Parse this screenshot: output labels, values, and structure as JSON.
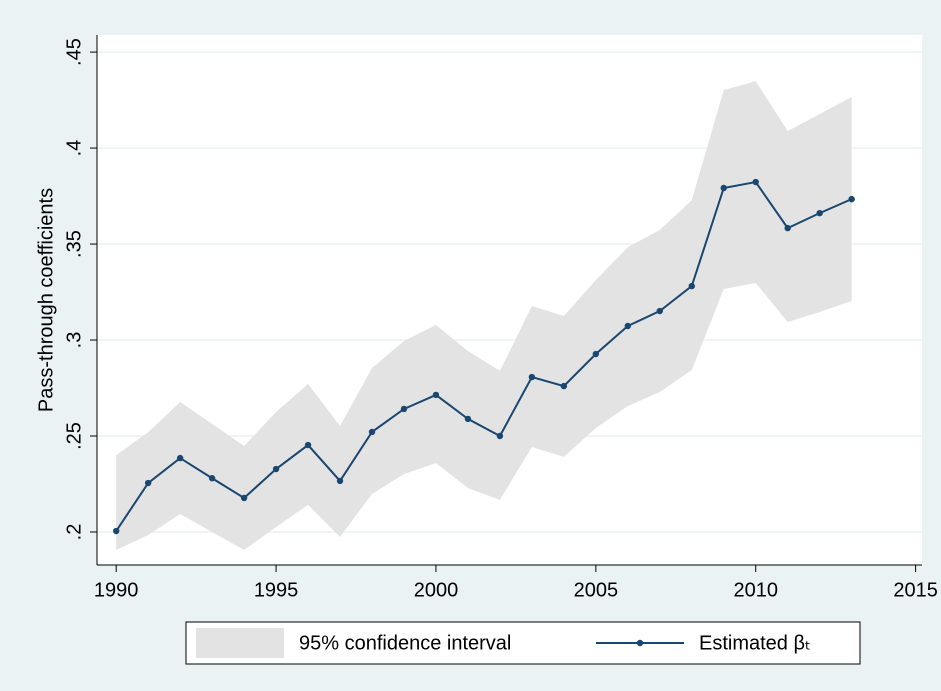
{
  "chart_data": {
    "type": "line",
    "ylabel": "Pass-through coefficients",
    "x": [
      1990,
      1991,
      1992,
      1993,
      1994,
      1995,
      1996,
      1997,
      1998,
      1999,
      2000,
      2001,
      2002,
      2003,
      2004,
      2005,
      2006,
      2007,
      2008,
      2009,
      2010,
      2011,
      2012,
      2013
    ],
    "series": [
      {
        "name": "Estimated βₜ",
        "color": "#1a476f",
        "values": [
          0.2005,
          0.2255,
          0.2385,
          0.228,
          0.2177,
          0.2328,
          0.2453,
          0.2266,
          0.2521,
          0.2641,
          0.2714,
          0.2589,
          0.25,
          0.2807,
          0.276,
          0.2927,
          0.3073,
          0.3151,
          0.3281,
          0.3792,
          0.3823,
          0.3583,
          0.3661,
          0.3734
        ]
      }
    ],
    "band": {
      "name": "95% confidence interval",
      "color": "#e3e3e3",
      "lower": [
        0.1906,
        0.1984,
        0.2094,
        0.2,
        0.1906,
        0.2026,
        0.2141,
        0.1974,
        0.2198,
        0.2302,
        0.2359,
        0.2229,
        0.2167,
        0.2443,
        0.2391,
        0.2542,
        0.2656,
        0.2729,
        0.2844,
        0.3266,
        0.3297,
        0.3094,
        0.3146,
        0.3203
      ],
      "upper": [
        0.24,
        0.252,
        0.2677,
        0.2563,
        0.2448,
        0.2625,
        0.2771,
        0.2552,
        0.2854,
        0.2995,
        0.3078,
        0.2943,
        0.2839,
        0.3177,
        0.3125,
        0.3313,
        0.3484,
        0.3573,
        0.3729,
        0.4302,
        0.4349,
        0.4089,
        0.4177,
        0.4266
      ]
    },
    "xlim": [
      1989.4,
      2015.2
    ],
    "xticks": [
      1990,
      1995,
      2000,
      2005,
      2010,
      2015
    ],
    "ylim": [
      0.1828,
      0.4589
    ],
    "yticks": [
      {
        "value": 0.2,
        "label": ".2"
      },
      {
        "value": 0.25,
        "label": ".25"
      },
      {
        "value": 0.3,
        "label": ".3"
      },
      {
        "value": 0.35,
        "label": ".35"
      },
      {
        "value": 0.4,
        "label": ".4"
      },
      {
        "value": 0.45,
        "label": ".45"
      }
    ],
    "grid": true
  }
}
